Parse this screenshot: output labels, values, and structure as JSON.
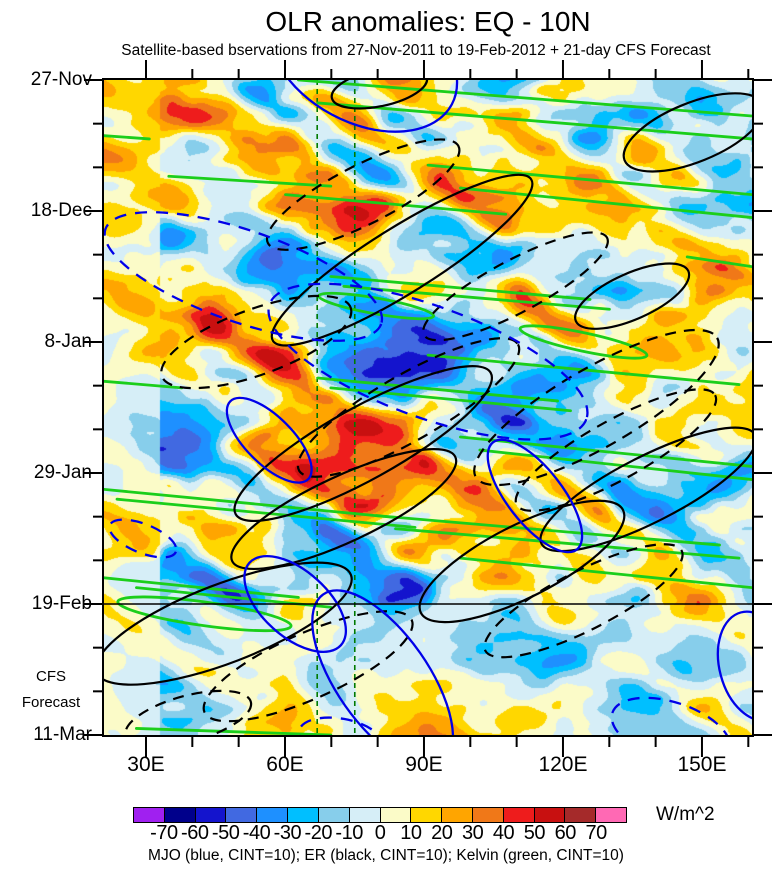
{
  "title": "OLR anomalies: EQ - 10N",
  "subtitle": "Satellite-based bservations from 27-Nov-2011 to 19-Feb-2012 + 21-day CFS Forecast",
  "legend": {
    "text": "MJO (blue, CINT=10); ER (black, CINT=10); Kelvin (green, CINT=10)",
    "entries": [
      {
        "name": "MJO",
        "color": "blue",
        "cint": 10
      },
      {
        "name": "ER",
        "color": "black",
        "cint": 10
      },
      {
        "name": "Kelvin",
        "color": "green",
        "cint": 10
      }
    ]
  },
  "y_axis": {
    "tick_labels": [
      "27-Nov",
      "18-Dec",
      "8-Jan",
      "29-Jan",
      "19-Feb",
      "11-Mar"
    ],
    "major_interval_days": 21,
    "minor_interval_days": 7,
    "forecast_label_line1": "CFS",
    "forecast_label_line2": "Forecast"
  },
  "x_axis": {
    "tick_labels": [
      "30E",
      "60E",
      "90E",
      "120E",
      "150E"
    ],
    "tick_degrees": [
      30,
      60,
      90,
      120,
      150
    ],
    "minor_interval_deg": 10
  },
  "chart_data": {
    "type": "heatmap",
    "title": "OLR anomalies: EQ - 10N",
    "value_units": "W/m^2",
    "time_range": [
      "27-Nov-2011",
      "11-Mar-2012"
    ],
    "observation_end": "19-Feb-2012",
    "forecast_days": 21,
    "latitude_band": "EQ - 10N",
    "x_range_deg_east": [
      21,
      166
    ],
    "contour_interval": 10,
    "colorbar": {
      "units": "W/m^2",
      "tick_values": [
        -70,
        -60,
        -50,
        -40,
        -30,
        -20,
        -10,
        0,
        10,
        20,
        30,
        40,
        50,
        60,
        70
      ],
      "colors": [
        "#A020F0",
        "#00008B",
        "#1414CD",
        "#4169E1",
        "#1E90FF",
        "#00BFFF",
        "#87CEEB",
        "#D6EEF7",
        "#FBFBC8",
        "#FFD700",
        "#FFA500",
        "#F07818",
        "#EE1C1C",
        "#C81010",
        "#A52A2A",
        "#FF69B4"
      ]
    },
    "overlays": {
      "colors": {
        "mjo": "#0000E8",
        "er": "#000000",
        "kelvin": "#1BCE1B",
        "reference_line": "#007A00",
        "forecast_boundary": "#000000"
      },
      "reference_vlines_x": [
        0.329,
        0.387
      ],
      "forecast_boundary_y": 0.8,
      "er_contours": [
        {
          "cx": 0.425,
          "cy": 0.012,
          "rx": 0.075,
          "ry": 0.028,
          "angle": -12,
          "dash": false
        },
        {
          "cx": 0.4,
          "cy": 0.175,
          "rx": 0.165,
          "ry": 0.045,
          "angle": -27,
          "dash": true
        },
        {
          "cx": 0.46,
          "cy": 0.275,
          "rx": 0.235,
          "ry": 0.05,
          "angle": -32,
          "dash": false
        },
        {
          "cx": 0.635,
          "cy": 0.315,
          "rx": 0.16,
          "ry": 0.04,
          "angle": -28,
          "dash": true
        },
        {
          "cx": 0.815,
          "cy": 0.33,
          "rx": 0.095,
          "ry": 0.035,
          "angle": -24,
          "dash": false
        },
        {
          "cx": 0.91,
          "cy": 0.08,
          "rx": 0.115,
          "ry": 0.045,
          "angle": -22,
          "dash": false
        },
        {
          "cx": 0.47,
          "cy": 0.5,
          "rx": 0.195,
          "ry": 0.05,
          "angle": -30,
          "dash": true
        },
        {
          "cx": 0.4,
          "cy": 0.555,
          "rx": 0.225,
          "ry": 0.055,
          "angle": -29,
          "dash": false
        },
        {
          "cx": 0.235,
          "cy": 0.4,
          "rx": 0.155,
          "ry": 0.05,
          "angle": -20,
          "dash": true
        },
        {
          "cx": 0.76,
          "cy": 0.5,
          "rx": 0.215,
          "ry": 0.06,
          "angle": -30,
          "dash": true
        },
        {
          "cx": 0.79,
          "cy": 0.565,
          "rx": 0.175,
          "ry": 0.045,
          "angle": -29,
          "dash": true
        },
        {
          "cx": 0.84,
          "cy": 0.625,
          "rx": 0.185,
          "ry": 0.05,
          "angle": -27,
          "dash": false
        },
        {
          "cx": 0.37,
          "cy": 0.655,
          "rx": 0.19,
          "ry": 0.05,
          "angle": -25,
          "dash": false
        },
        {
          "cx": 0.645,
          "cy": 0.735,
          "rx": 0.175,
          "ry": 0.055,
          "angle": -27,
          "dash": false
        },
        {
          "cx": 0.185,
          "cy": 0.83,
          "rx": 0.21,
          "ry": 0.06,
          "angle": -21,
          "dash": false
        },
        {
          "cx": 0.315,
          "cy": 0.895,
          "rx": 0.175,
          "ry": 0.05,
          "angle": -24,
          "dash": true
        },
        {
          "cx": 0.74,
          "cy": 0.795,
          "rx": 0.17,
          "ry": 0.045,
          "angle": -27,
          "dash": true
        },
        {
          "cx": 0.13,
          "cy": 0.975,
          "rx": 0.1,
          "ry": 0.035,
          "angle": -15,
          "dash": true
        }
      ],
      "mjo_contours": [
        {
          "cx": 0.4,
          "cy": -0.035,
          "rx": 0.155,
          "ry": 0.1,
          "angle": 28,
          "dash": false
        },
        {
          "cx": 0.215,
          "cy": 0.3,
          "rx": 0.225,
          "ry": 0.07,
          "angle": 19,
          "dash": true
        },
        {
          "cx": 0.255,
          "cy": 0.55,
          "rx": 0.085,
          "ry": 0.036,
          "angle": 45,
          "dash": false
        },
        {
          "cx": 0.5,
          "cy": 0.43,
          "rx": 0.26,
          "ry": 0.085,
          "angle": 20,
          "dash": true
        },
        {
          "cx": 0.665,
          "cy": 0.635,
          "rx": 0.105,
          "ry": 0.042,
          "angle": 52,
          "dash": false
        },
        {
          "cx": 0.295,
          "cy": 0.8,
          "rx": 0.095,
          "ry": 0.05,
          "angle": 42,
          "dash": false
        },
        {
          "cx": 0.43,
          "cy": 0.915,
          "rx": 0.16,
          "ry": 0.07,
          "angle": 55,
          "dash": false
        },
        {
          "cx": 0.365,
          "cy": 1.005,
          "rx": 0.065,
          "ry": 0.03,
          "angle": 10,
          "dash": true
        },
        {
          "cx": 0.875,
          "cy": 0.995,
          "rx": 0.095,
          "ry": 0.045,
          "angle": 18,
          "dash": true
        },
        {
          "cx": 1.005,
          "cy": 0.895,
          "rx": 0.055,
          "ry": 0.085,
          "angle": -15,
          "dash": false
        },
        {
          "cx": 0.06,
          "cy": 0.7,
          "rx": 0.055,
          "ry": 0.022,
          "angle": 22,
          "dash": true
        }
      ],
      "kelvin_lines": [
        [
          0.3,
          0.0,
          1.0,
          0.055
        ],
        [
          0.33,
          0.035,
          1.0,
          0.09
        ],
        [
          0.0,
          0.085,
          0.07,
          0.09
        ],
        [
          0.1,
          0.147,
          0.35,
          0.162
        ],
        [
          0.28,
          0.175,
          0.62,
          0.205
        ],
        [
          0.5,
          0.13,
          1.0,
          0.175
        ],
        [
          0.55,
          0.165,
          1.0,
          0.21
        ],
        [
          0.35,
          0.3,
          0.75,
          0.335
        ],
        [
          0.37,
          0.315,
          0.78,
          0.35
        ],
        [
          0.9,
          0.27,
          1.0,
          0.285
        ],
        [
          0.5,
          0.42,
          0.98,
          0.465
        ],
        [
          0.0,
          0.46,
          0.12,
          0.47
        ],
        [
          0.33,
          0.455,
          0.7,
          0.49
        ],
        [
          0.35,
          0.47,
          0.72,
          0.505
        ],
        [
          0.55,
          0.545,
          1.0,
          0.59
        ],
        [
          0.58,
          0.565,
          1.0,
          0.61
        ],
        [
          0.0,
          0.625,
          0.45,
          0.668
        ],
        [
          0.02,
          0.64,
          0.48,
          0.683
        ],
        [
          0.42,
          0.665,
          0.95,
          0.71
        ],
        [
          0.45,
          0.685,
          0.98,
          0.73
        ],
        [
          0.55,
          0.73,
          1.0,
          0.775
        ],
        [
          0.0,
          0.76,
          0.3,
          0.79
        ],
        [
          0.05,
          0.775,
          0.35,
          0.805
        ],
        [
          0.05,
          0.99,
          0.35,
          1.0
        ]
      ],
      "kelvin_contours": [
        {
          "cx": 0.155,
          "cy": 0.815,
          "rx": 0.135,
          "ry": 0.018,
          "angle": 8
        },
        {
          "cx": 0.42,
          "cy": 0.345,
          "rx": 0.09,
          "ry": 0.012,
          "angle": 10
        },
        {
          "cx": 0.74,
          "cy": 0.4,
          "rx": 0.1,
          "ry": 0.014,
          "angle": 12
        }
      ]
    }
  }
}
